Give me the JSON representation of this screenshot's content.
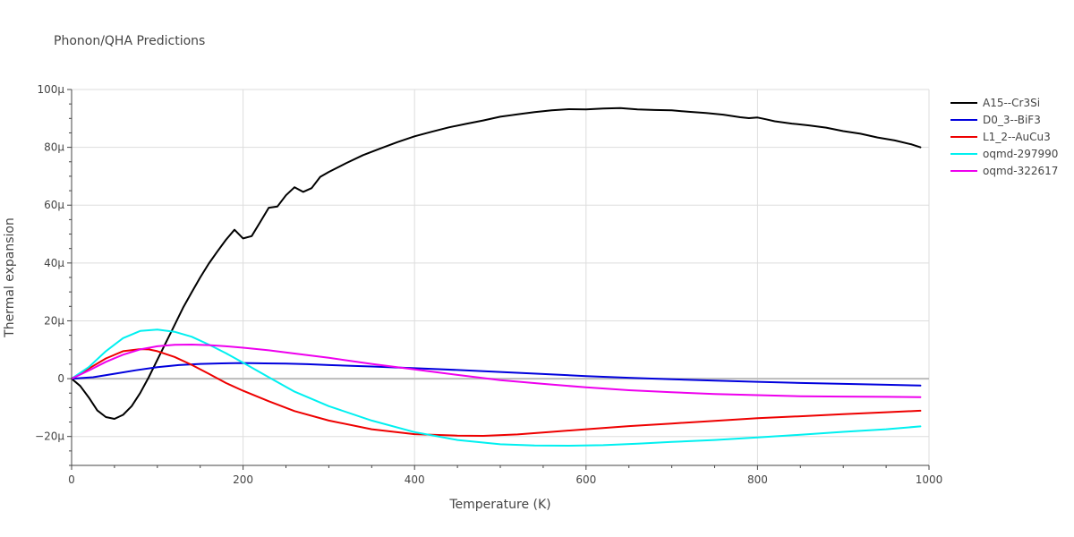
{
  "chart_data": {
    "type": "line",
    "title": "Phonon/QHA Predictions",
    "xlabel": "Temperature (K)",
    "ylabel": "Thermal expansion",
    "xlim": [
      0,
      1000
    ],
    "ylim": [
      -30,
      100
    ],
    "y_unit_suffix": "μ",
    "xticks": [
      0,
      200,
      400,
      600,
      800,
      1000
    ],
    "xtick_labels": [
      "0",
      "200",
      "400",
      "600",
      "800",
      "1000"
    ],
    "yticks": [
      -20,
      0,
      20,
      40,
      60,
      80,
      100
    ],
    "ytick_labels": [
      "−20μ",
      "0",
      "20μ",
      "40μ",
      "60μ",
      "80μ",
      "100μ"
    ],
    "grid": true,
    "legend_position": "top-right",
    "series": [
      {
        "name": "A15--Cr3Si",
        "color": "#000000",
        "x": [
          0,
          10,
          20,
          30,
          40,
          50,
          60,
          70,
          80,
          90,
          100,
          110,
          120,
          130,
          140,
          150,
          160,
          170,
          180,
          190,
          200,
          210,
          220,
          230,
          240,
          250,
          260,
          270,
          280,
          290,
          300,
          320,
          340,
          360,
          380,
          400,
          420,
          440,
          460,
          480,
          500,
          520,
          540,
          560,
          580,
          600,
          620,
          640,
          660,
          680,
          700,
          720,
          740,
          760,
          780,
          790,
          800,
          810,
          820,
          840,
          860,
          880,
          900,
          920,
          940,
          960,
          980,
          990
        ],
        "values": [
          0,
          -2.5,
          -6.5,
          -11,
          -13.3,
          -13.9,
          -12.5,
          -9.5,
          -5,
          0.5,
          6.5,
          12.5,
          18.5,
          24.5,
          29.8,
          35,
          39.8,
          44,
          48,
          51.5,
          48.5,
          49.3,
          54.2,
          59.1,
          59.5,
          63.4,
          66.2,
          64.6,
          65.9,
          69.8,
          71.5,
          74.5,
          77.3,
          79.6,
          81.8,
          83.8,
          85.4,
          86.9,
          88.1,
          89.3,
          90.6,
          91.4,
          92.2,
          92.8,
          93.2,
          93.1,
          93.4,
          93.6,
          93.1,
          92.9,
          92.8,
          92.3,
          91.9,
          91.3,
          90.4,
          90.1,
          90.3,
          89.7,
          89,
          88.2,
          87.6,
          86.8,
          85.6,
          84.7,
          83.4,
          82.4,
          81,
          80
        ]
      },
      {
        "name": "D0_3--BiF3",
        "color": "#0000dd",
        "x": [
          0,
          25,
          50,
          75,
          100,
          125,
          150,
          175,
          200,
          225,
          250,
          275,
          300,
          350,
          400,
          450,
          500,
          550,
          600,
          650,
          700,
          750,
          800,
          850,
          900,
          950,
          990
        ],
        "values": [
          0,
          0.5,
          1.7,
          2.9,
          4,
          4.7,
          5.1,
          5.3,
          5.4,
          5.3,
          5.2,
          5,
          4.7,
          4.2,
          3.6,
          3,
          2.3,
          1.6,
          0.9,
          0.3,
          -0.2,
          -0.7,
          -1.1,
          -1.5,
          -1.8,
          -2.1,
          -2.4
        ]
      },
      {
        "name": "L1_2--AuCu3",
        "color": "#ee0000",
        "x": [
          0,
          20,
          40,
          60,
          80,
          90,
          100,
          120,
          140,
          160,
          180,
          200,
          230,
          260,
          300,
          350,
          400,
          450,
          480,
          520,
          560,
          600,
          650,
          700,
          750,
          800,
          850,
          900,
          950,
          990
        ],
        "values": [
          0,
          3.5,
          7,
          9.5,
          10.2,
          10.1,
          9.5,
          7.5,
          4.8,
          1.7,
          -1.5,
          -4.2,
          -7.8,
          -11.2,
          -14.5,
          -17.5,
          -19.2,
          -19.7,
          -19.8,
          -19.3,
          -18.4,
          -17.5,
          -16.4,
          -15.5,
          -14.6,
          -13.7,
          -13,
          -12.3,
          -11.6,
          -11.1
        ]
      },
      {
        "name": "oqmd-297990",
        "color": "#00f0f0",
        "x": [
          0,
          20,
          40,
          60,
          80,
          100,
          120,
          140,
          160,
          180,
          200,
          230,
          260,
          300,
          350,
          400,
          450,
          500,
          540,
          580,
          620,
          660,
          700,
          750,
          800,
          850,
          900,
          950,
          990
        ],
        "values": [
          0,
          4,
          9.5,
          14,
          16.5,
          17,
          16.2,
          14.5,
          11.8,
          8.8,
          5.5,
          0.5,
          -4.5,
          -9.5,
          -14.5,
          -18.5,
          -21.2,
          -22.7,
          -23.1,
          -23.2,
          -23,
          -22.5,
          -21.9,
          -21.2,
          -20.3,
          -19.4,
          -18.4,
          -17.5,
          -16.5
        ]
      },
      {
        "name": "oqmd-322617",
        "color": "#ee00ee",
        "x": [
          0,
          20,
          40,
          60,
          80,
          100,
          120,
          140,
          160,
          180,
          200,
          230,
          260,
          300,
          350,
          400,
          450,
          500,
          550,
          600,
          650,
          700,
          750,
          800,
          850,
          900,
          950,
          990
        ],
        "values": [
          0,
          2.8,
          5.8,
          8.3,
          10.1,
          11.2,
          11.7,
          11.8,
          11.6,
          11.2,
          10.7,
          9.8,
          8.7,
          7.2,
          5.1,
          3.2,
          1.3,
          -0.5,
          -1.8,
          -3,
          -4,
          -4.7,
          -5.3,
          -5.7,
          -6.1,
          -6.2,
          -6.3,
          -6.4
        ]
      }
    ]
  }
}
